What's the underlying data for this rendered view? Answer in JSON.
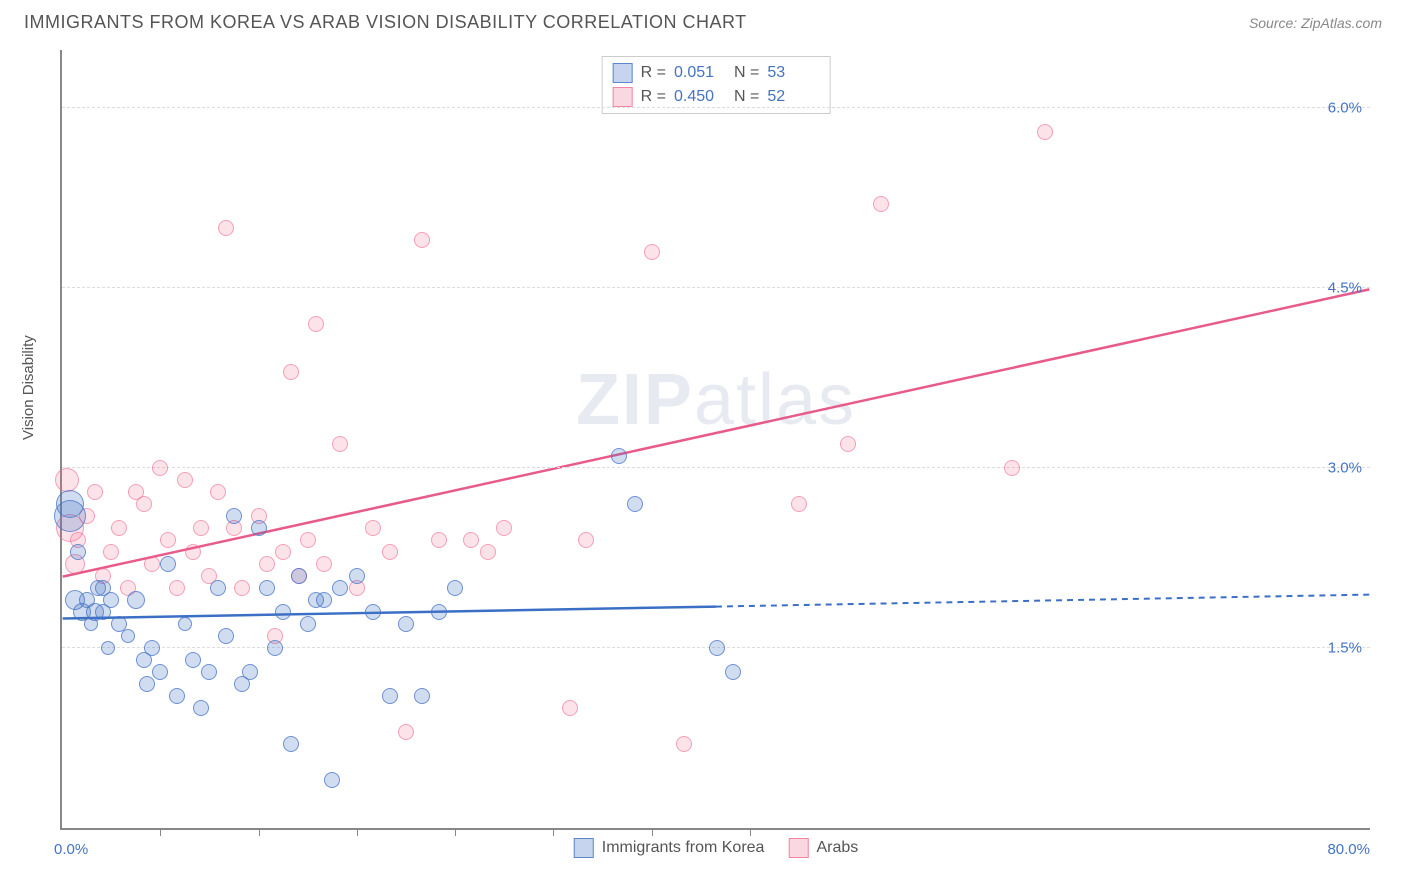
{
  "header": {
    "title": "IMMIGRANTS FROM KOREA VS ARAB VISION DISABILITY CORRELATION CHART",
    "source": "Source: ZipAtlas.com"
  },
  "ylabel": "Vision Disability",
  "watermark_a": "ZIP",
  "watermark_b": "atlas",
  "chart": {
    "type": "scatter",
    "xlim": [
      0,
      80
    ],
    "ylim": [
      0,
      6.5
    ],
    "x_min_label": "0.0%",
    "x_max_label": "80.0%",
    "y_ticks": [
      1.5,
      3.0,
      4.5,
      6.0
    ],
    "y_tick_labels": [
      "1.5%",
      "3.0%",
      "4.5%",
      "6.0%"
    ],
    "x_minor_ticks": [
      6,
      12,
      18,
      24,
      30,
      36,
      42
    ],
    "background_color": "#ffffff",
    "grid_color": "#dddddd",
    "axis_color": "#888888",
    "series": {
      "korea": {
        "label": "Immigrants from Korea",
        "fill_color": "rgba(68,114,196,0.25)",
        "stroke_color": "rgba(68,114,196,0.7)",
        "line_color": "#3b6fc5",
        "r_value": "0.051",
        "n_value": "53",
        "trend": {
          "x1": 0,
          "y1": 1.75,
          "x2": 80,
          "y2": 1.95,
          "solid_until_x": 40
        },
        "points": [
          {
            "x": 0.5,
            "y": 2.7,
            "r": 14
          },
          {
            "x": 0.5,
            "y": 2.6,
            "r": 16
          },
          {
            "x": 0.8,
            "y": 1.9,
            "r": 10
          },
          {
            "x": 1.0,
            "y": 2.3,
            "r": 8
          },
          {
            "x": 1.2,
            "y": 1.8,
            "r": 9
          },
          {
            "x": 1.5,
            "y": 1.9,
            "r": 8
          },
          {
            "x": 1.8,
            "y": 1.7,
            "r": 7
          },
          {
            "x": 2.0,
            "y": 1.8,
            "r": 9
          },
          {
            "x": 2.2,
            "y": 2.0,
            "r": 8
          },
          {
            "x": 2.5,
            "y": 1.8,
            "r": 8
          },
          {
            "x": 2.8,
            "y": 1.5,
            "r": 7
          },
          {
            "x": 3.0,
            "y": 1.9,
            "r": 8
          },
          {
            "x": 3.5,
            "y": 1.7,
            "r": 8
          },
          {
            "x": 4.0,
            "y": 1.6,
            "r": 7
          },
          {
            "x": 4.5,
            "y": 1.9,
            "r": 9
          },
          {
            "x": 5.0,
            "y": 1.4,
            "r": 8
          },
          {
            "x": 5.2,
            "y": 1.2,
            "r": 8
          },
          {
            "x": 5.5,
            "y": 1.5,
            "r": 8
          },
          {
            "x": 6.0,
            "y": 1.3,
            "r": 8
          },
          {
            "x": 6.5,
            "y": 2.2,
            "r": 8
          },
          {
            "x": 7.0,
            "y": 1.1,
            "r": 8
          },
          {
            "x": 7.5,
            "y": 1.7,
            "r": 7
          },
          {
            "x": 8.0,
            "y": 1.4,
            "r": 8
          },
          {
            "x": 8.5,
            "y": 1.0,
            "r": 8
          },
          {
            "x": 9.0,
            "y": 1.3,
            "r": 8
          },
          {
            "x": 9.5,
            "y": 2.0,
            "r": 8
          },
          {
            "x": 10.0,
            "y": 1.6,
            "r": 8
          },
          {
            "x": 10.5,
            "y": 2.6,
            "r": 8
          },
          {
            "x": 11.0,
            "y": 1.2,
            "r": 8
          },
          {
            "x": 11.5,
            "y": 1.3,
            "r": 8
          },
          {
            "x": 12.0,
            "y": 2.5,
            "r": 8
          },
          {
            "x": 12.5,
            "y": 2.0,
            "r": 8
          },
          {
            "x": 13.0,
            "y": 1.5,
            "r": 8
          },
          {
            "x": 13.5,
            "y": 1.8,
            "r": 8
          },
          {
            "x": 14.0,
            "y": 0.7,
            "r": 8
          },
          {
            "x": 14.5,
            "y": 2.1,
            "r": 8
          },
          {
            "x": 15.0,
            "y": 1.7,
            "r": 8
          },
          {
            "x": 15.5,
            "y": 1.9,
            "r": 8
          },
          {
            "x": 16.0,
            "y": 1.9,
            "r": 8
          },
          {
            "x": 16.5,
            "y": 0.4,
            "r": 8
          },
          {
            "x": 17.0,
            "y": 2.0,
            "r": 8
          },
          {
            "x": 18.0,
            "y": 2.1,
            "r": 8
          },
          {
            "x": 19.0,
            "y": 1.8,
            "r": 8
          },
          {
            "x": 20.0,
            "y": 1.1,
            "r": 8
          },
          {
            "x": 21.0,
            "y": 1.7,
            "r": 8
          },
          {
            "x": 22.0,
            "y": 1.1,
            "r": 8
          },
          {
            "x": 23.0,
            "y": 1.8,
            "r": 8
          },
          {
            "x": 24.0,
            "y": 2.0,
            "r": 8
          },
          {
            "x": 34.0,
            "y": 3.1,
            "r": 8
          },
          {
            "x": 35.0,
            "y": 2.7,
            "r": 8
          },
          {
            "x": 40.0,
            "y": 1.5,
            "r": 8
          },
          {
            "x": 41.0,
            "y": 1.3,
            "r": 8
          },
          {
            "x": 2.5,
            "y": 2.0,
            "r": 8
          }
        ]
      },
      "arabs": {
        "label": "Arabs",
        "fill_color": "rgba(236,100,140,0.18)",
        "stroke_color": "rgba(236,100,140,0.55)",
        "line_color": "#e85a8a",
        "r_value": "0.450",
        "n_value": "52",
        "trend": {
          "x1": 0,
          "y1": 2.1,
          "x2": 80,
          "y2": 4.5,
          "solid_until_x": 80
        },
        "points": [
          {
            "x": 0.3,
            "y": 2.9,
            "r": 12
          },
          {
            "x": 0.5,
            "y": 2.5,
            "r": 14
          },
          {
            "x": 0.8,
            "y": 2.2,
            "r": 10
          },
          {
            "x": 1.0,
            "y": 2.4,
            "r": 8
          },
          {
            "x": 1.5,
            "y": 2.6,
            "r": 8
          },
          {
            "x": 2.0,
            "y": 2.8,
            "r": 8
          },
          {
            "x": 2.5,
            "y": 2.1,
            "r": 8
          },
          {
            "x": 3.0,
            "y": 2.3,
            "r": 8
          },
          {
            "x": 3.5,
            "y": 2.5,
            "r": 8
          },
          {
            "x": 4.0,
            "y": 2.0,
            "r": 8
          },
          {
            "x": 4.5,
            "y": 2.8,
            "r": 8
          },
          {
            "x": 5.0,
            "y": 2.7,
            "r": 8
          },
          {
            "x": 5.5,
            "y": 2.2,
            "r": 8
          },
          {
            "x": 6.0,
            "y": 3.0,
            "r": 8
          },
          {
            "x": 6.5,
            "y": 2.4,
            "r": 8
          },
          {
            "x": 7.0,
            "y": 2.0,
            "r": 8
          },
          {
            "x": 7.5,
            "y": 2.9,
            "r": 8
          },
          {
            "x": 8.0,
            "y": 2.3,
            "r": 8
          },
          {
            "x": 9.0,
            "y": 2.1,
            "r": 8
          },
          {
            "x": 10.0,
            "y": 5.0,
            "r": 8
          },
          {
            "x": 10.5,
            "y": 2.5,
            "r": 8
          },
          {
            "x": 11.0,
            "y": 2.0,
            "r": 8
          },
          {
            "x": 12.0,
            "y": 2.6,
            "r": 8
          },
          {
            "x": 13.0,
            "y": 1.6,
            "r": 8
          },
          {
            "x": 14.0,
            "y": 3.8,
            "r": 8
          },
          {
            "x": 15.0,
            "y": 2.4,
            "r": 8
          },
          {
            "x": 15.5,
            "y": 4.2,
            "r": 8
          },
          {
            "x": 16.0,
            "y": 2.2,
            "r": 8
          },
          {
            "x": 17.0,
            "y": 3.2,
            "r": 8
          },
          {
            "x": 18.0,
            "y": 2.0,
            "r": 8
          },
          {
            "x": 19.0,
            "y": 2.5,
            "r": 8
          },
          {
            "x": 20.0,
            "y": 2.3,
            "r": 8
          },
          {
            "x": 21.0,
            "y": 0.8,
            "r": 8
          },
          {
            "x": 22.0,
            "y": 4.9,
            "r": 8
          },
          {
            "x": 23.0,
            "y": 2.4,
            "r": 8
          },
          {
            "x": 25.0,
            "y": 2.4,
            "r": 8
          },
          {
            "x": 26.0,
            "y": 2.3,
            "r": 8
          },
          {
            "x": 27.0,
            "y": 2.5,
            "r": 8
          },
          {
            "x": 31.0,
            "y": 1.0,
            "r": 8
          },
          {
            "x": 32.0,
            "y": 2.4,
            "r": 8
          },
          {
            "x": 36.0,
            "y": 4.8,
            "r": 8
          },
          {
            "x": 38.0,
            "y": 0.7,
            "r": 8
          },
          {
            "x": 45.0,
            "y": 2.7,
            "r": 8
          },
          {
            "x": 48.0,
            "y": 3.2,
            "r": 8
          },
          {
            "x": 50.0,
            "y": 5.2,
            "r": 8
          },
          {
            "x": 58.0,
            "y": 3.0,
            "r": 8
          },
          {
            "x": 60.0,
            "y": 5.8,
            "r": 8
          },
          {
            "x": 12.5,
            "y": 2.2,
            "r": 8
          },
          {
            "x": 8.5,
            "y": 2.5,
            "r": 8
          },
          {
            "x": 9.5,
            "y": 2.8,
            "r": 8
          },
          {
            "x": 13.5,
            "y": 2.3,
            "r": 8
          },
          {
            "x": 14.5,
            "y": 2.1,
            "r": 8
          }
        ]
      }
    }
  },
  "stat_box": {
    "r_label": "R =",
    "n_label": "N ="
  }
}
